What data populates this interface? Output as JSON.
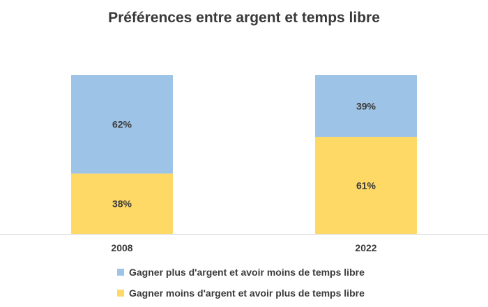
{
  "chart_data": {
    "type": "bar",
    "stacked": true,
    "normalized": true,
    "title": "Préférences entre argent et temps libre",
    "categories": [
      "2008",
      "2022"
    ],
    "series": [
      {
        "name": "Gagner moins d'argent et avoir plus de temps libre",
        "values": [
          38,
          61
        ],
        "labels": [
          "38%",
          "61%"
        ],
        "color": "#FFD966"
      },
      {
        "name": "Gagner plus d'argent et avoir moins de temps libre",
        "values": [
          62,
          39
        ],
        "labels": [
          "62%",
          "39%"
        ],
        "color": "#9DC3E6"
      }
    ],
    "ylim": [
      0,
      100
    ],
    "grid": false,
    "legend_position": "bottom"
  }
}
